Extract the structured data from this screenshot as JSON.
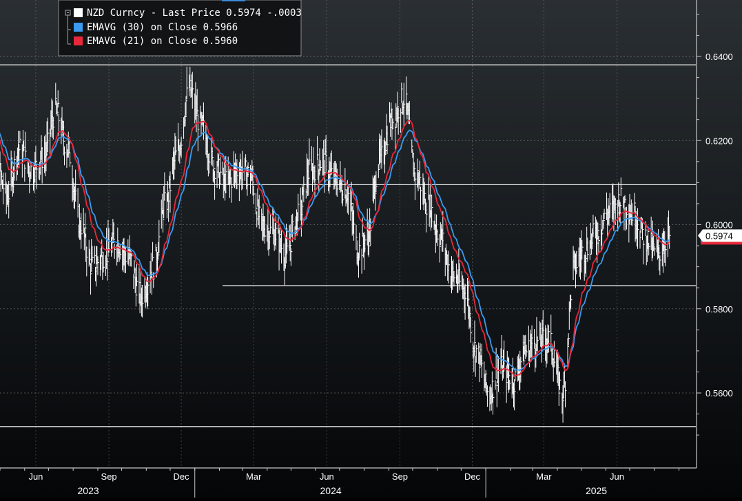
{
  "chart_data": {
    "type": "bar",
    "subtype": "high-low price bars with moving averages",
    "title": "",
    "instrument": "NZD Curncy",
    "legend": [
      {
        "label": "NZD Curncy - Last Price",
        "value": "0.5974",
        "change": "-.0003",
        "color": "#ffffff"
      },
      {
        "label": "EMAVG (30)  on Close",
        "value": "0.5966",
        "color": "#3a9bf0"
      },
      {
        "label": "EMAVG (21)  on Close",
        "value": "0.5960",
        "color": "#e8283a"
      }
    ],
    "legend_placement": "top-left",
    "last_price_tag": "0.5974",
    "ylim": [
      0.548,
      0.6535
    ],
    "y_ticks": [
      "0.6400",
      "0.6200",
      "0.6000",
      "0.5800",
      "0.5600"
    ],
    "y_axis_position": "right",
    "grid": true,
    "x_month_ticks": [
      "Jun",
      "Sep",
      "Dec",
      "Mar",
      "Jun",
      "Sep",
      "Dec",
      "Mar",
      "Jun"
    ],
    "x_year_labels": [
      "2023",
      "2024",
      "2025"
    ],
    "horizontal_levels": [
      {
        "value": 0.638,
        "start": "full"
      },
      {
        "value": 0.6095,
        "start": "full"
      },
      {
        "value": 0.5855,
        "start": "2024-02"
      },
      {
        "value": 0.552,
        "start": "full"
      }
    ],
    "close_anchors": [
      [
        "2023-04-10",
        0.628
      ],
      [
        "2023-04-25",
        0.615
      ],
      [
        "2023-05-10",
        0.607
      ],
      [
        "2023-05-25",
        0.618
      ],
      [
        "2023-06-10",
        0.613
      ],
      [
        "2023-06-25",
        0.616
      ],
      [
        "2023-07-10",
        0.627
      ],
      [
        "2023-07-25",
        0.618
      ],
      [
        "2023-08-10",
        0.6
      ],
      [
        "2023-08-25",
        0.59
      ],
      [
        "2023-09-10",
        0.593
      ],
      [
        "2023-09-25",
        0.596
      ],
      [
        "2023-10-10",
        0.592
      ],
      [
        "2023-10-25",
        0.583
      ],
      [
        "2023-11-10",
        0.59
      ],
      [
        "2023-11-25",
        0.605
      ],
      [
        "2023-12-10",
        0.617
      ],
      [
        "2023-12-25",
        0.632
      ],
      [
        "2024-01-10",
        0.623
      ],
      [
        "2024-01-25",
        0.614
      ],
      [
        "2024-02-10",
        0.61
      ],
      [
        "2024-02-25",
        0.613
      ],
      [
        "2024-03-10",
        0.612
      ],
      [
        "2024-03-25",
        0.6
      ],
      [
        "2024-04-10",
        0.598
      ],
      [
        "2024-04-25",
        0.593
      ],
      [
        "2024-05-10",
        0.602
      ],
      [
        "2024-05-25",
        0.613
      ],
      [
        "2024-06-10",
        0.615
      ],
      [
        "2024-06-25",
        0.611
      ],
      [
        "2024-07-10",
        0.608
      ],
      [
        "2024-07-25",
        0.594
      ],
      [
        "2024-08-05",
        0.597
      ],
      [
        "2024-08-20",
        0.615
      ],
      [
        "2024-09-05",
        0.625
      ],
      [
        "2024-09-20",
        0.63
      ],
      [
        "2024-10-05",
        0.612
      ],
      [
        "2024-10-20",
        0.605
      ],
      [
        "2024-11-05",
        0.597
      ],
      [
        "2024-11-20",
        0.588
      ],
      [
        "2024-12-05",
        0.585
      ],
      [
        "2024-12-20",
        0.57
      ],
      [
        "2025-01-05",
        0.56
      ],
      [
        "2025-01-20",
        0.566
      ],
      [
        "2025-02-05",
        0.563
      ],
      [
        "2025-02-20",
        0.57
      ],
      [
        "2025-03-05",
        0.572
      ],
      [
        "2025-03-20",
        0.573
      ],
      [
        "2025-04-08",
        0.56
      ],
      [
        "2025-04-22",
        0.59
      ],
      [
        "2025-05-05",
        0.594
      ],
      [
        "2025-05-20",
        0.598
      ],
      [
        "2025-06-05",
        0.603
      ],
      [
        "2025-06-20",
        0.606
      ],
      [
        "2025-07-05",
        0.603
      ],
      [
        "2025-07-20",
        0.597
      ],
      [
        "2025-08-05",
        0.593
      ],
      [
        "2025-08-20",
        0.5974
      ]
    ]
  }
}
